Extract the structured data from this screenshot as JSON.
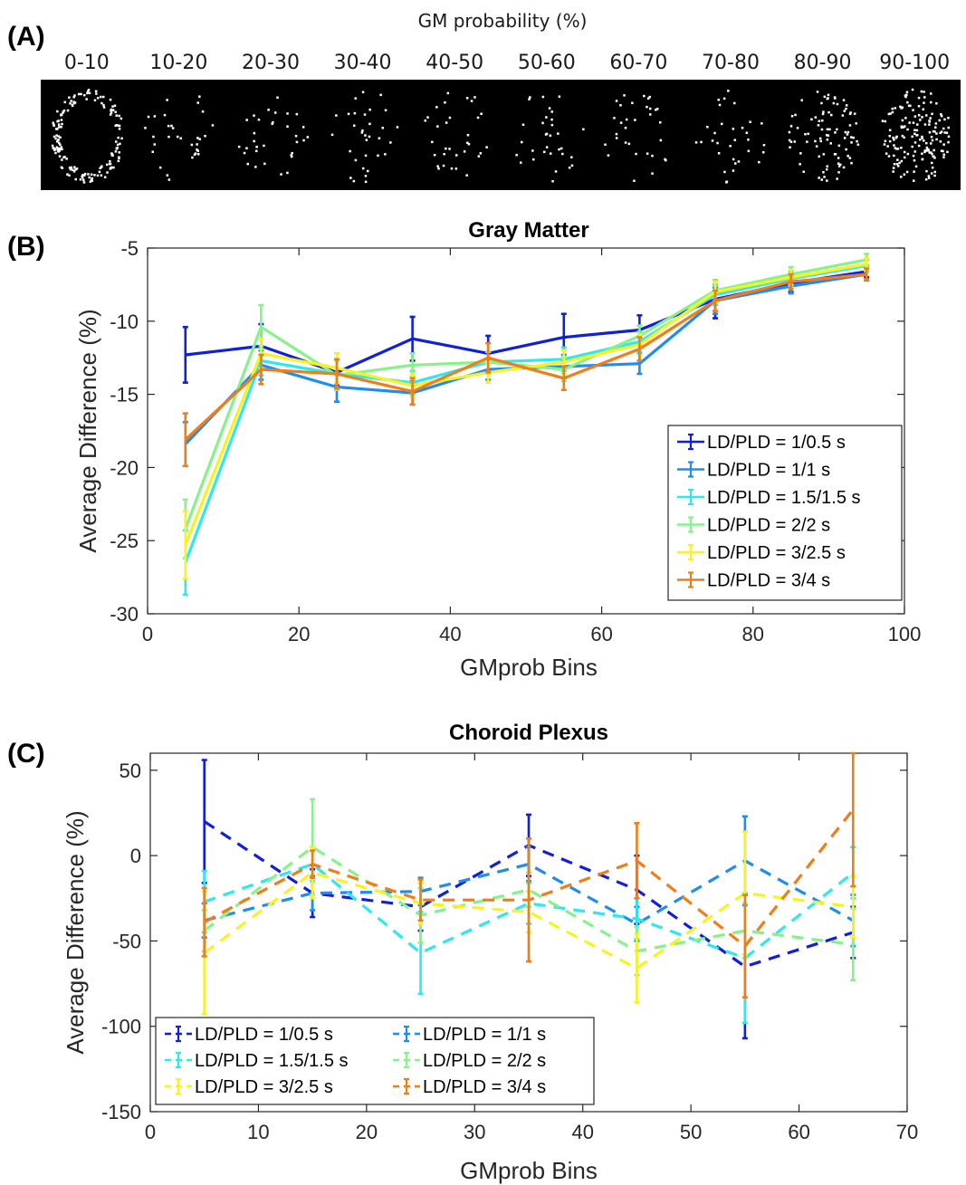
{
  "panel_a": {
    "label": "(A)",
    "title": "GM probability (%)",
    "bins": [
      "0-10",
      "10-20",
      "20-30",
      "30-40",
      "40-50",
      "50-60",
      "60-70",
      "70-80",
      "80-90",
      "90-100"
    ]
  },
  "colors": {
    "s1": "#0f1fdc",
    "s2": "#1e8cf0",
    "s3": "#2ee8f0",
    "s4": "#86f28a",
    "s5": "#f8f21e",
    "s6": "#f07d16"
  },
  "chart_data": [
    {
      "label": "(B)",
      "type": "line",
      "title": "Gray Matter",
      "xlabel": "GMprob Bins",
      "ylabel": "Average Difference (%)",
      "xlim": [
        0,
        100
      ],
      "ylim": [
        -30,
        -5
      ],
      "xticks": [
        0,
        20,
        40,
        60,
        80,
        100
      ],
      "yticks": [
        -30,
        -25,
        -20,
        -15,
        -10,
        -5
      ],
      "legend_position": "lower-right",
      "line_style": "solid",
      "x": [
        5,
        15,
        25,
        35,
        45,
        55,
        65,
        75,
        85,
        95
      ],
      "series": [
        {
          "name": "LD/PLD = 1/0.5 s",
          "values": [
            -12.3,
            -11.7,
            -13.5,
            -11.2,
            -12.2,
            -11.1,
            -10.6,
            -8.5,
            -7.4,
            -6.6
          ],
          "err": [
            1.9,
            1.5,
            0.9,
            1.5,
            1.2,
            1.6,
            1.0,
            1.3,
            0.6,
            0.4
          ]
        },
        {
          "name": "LD/PLD = 1/1 s",
          "values": [
            -18.4,
            -13.0,
            -14.5,
            -14.9,
            -13.3,
            -13.1,
            -12.9,
            -8.6,
            -7.6,
            -6.8
          ],
          "err": [
            1.5,
            1.0,
            1.0,
            0.8,
            0.7,
            0.8,
            0.7,
            0.9,
            0.5,
            0.4
          ]
        },
        {
          "name": "LD/PLD = 1.5/1.5 s",
          "values": [
            -26.5,
            -12.7,
            -13.6,
            -14.2,
            -12.8,
            -12.6,
            -11.4,
            -8.2,
            -7.1,
            -6.2
          ],
          "err": [
            2.2,
            1.0,
            1.0,
            0.8,
            0.7,
            0.8,
            0.7,
            0.7,
            0.5,
            0.4
          ]
        },
        {
          "name": "LD/PLD = 2/2 s",
          "values": [
            -24.2,
            -10.4,
            -13.7,
            -13.0,
            -12.8,
            -13.3,
            -11.0,
            -7.9,
            -6.8,
            -5.8
          ],
          "err": [
            2.0,
            1.5,
            1.0,
            0.8,
            0.7,
            0.8,
            0.7,
            0.7,
            0.5,
            0.4
          ]
        },
        {
          "name": "LD/PLD = 3/2.5 s",
          "values": [
            -25.3,
            -12.2,
            -13.2,
            -14.4,
            -13.5,
            -12.8,
            -11.6,
            -8.0,
            -7.0,
            -6.1
          ],
          "err": [
            2.3,
            1.0,
            1.0,
            0.8,
            0.7,
            0.8,
            0.7,
            0.7,
            0.5,
            0.4
          ]
        },
        {
          "name": "LD/PLD = 3/4 s",
          "values": [
            -18.1,
            -13.3,
            -13.6,
            -14.8,
            -12.5,
            -13.9,
            -11.9,
            -8.6,
            -7.3,
            -6.8
          ],
          "err": [
            1.8,
            1.0,
            1.0,
            0.9,
            1.0,
            0.8,
            0.8,
            0.7,
            0.5,
            0.4
          ]
        }
      ]
    },
    {
      "label": "(C)",
      "type": "line",
      "title": "Choroid Plexus",
      "xlabel": "GMprob Bins",
      "ylabel": "Average Difference (%)",
      "xlim": [
        0,
        70
      ],
      "ylim": [
        -150,
        60
      ],
      "xticks": [
        0,
        10,
        20,
        30,
        40,
        50,
        60,
        70
      ],
      "yticks": [
        -150,
        -100,
        -50,
        0,
        50
      ],
      "legend_position": "lower-left",
      "line_style": "dashed",
      "x": [
        5,
        15,
        25,
        35,
        45,
        55,
        65
      ],
      "series": [
        {
          "name": "LD/PLD = 1/0.5 s",
          "values": [
            20,
            -22,
            -30,
            6,
            -20,
            -65,
            -45
          ],
          "err": [
            36,
            14,
            14,
            18,
            20,
            42,
            15
          ]
        },
        {
          "name": "LD/PLD = 1/1 s",
          "values": [
            -38,
            -22,
            -21,
            -5,
            -40,
            -3,
            -38
          ],
          "err": [
            10,
            10,
            8,
            10,
            10,
            26,
            15
          ]
        },
        {
          "name": "LD/PLD = 1.5/1.5 s",
          "values": [
            -27,
            -5,
            -57,
            -28,
            -37,
            -60,
            -10
          ],
          "err": [
            18,
            10,
            24,
            12,
            12,
            38,
            15
          ]
        },
        {
          "name": "LD/PLD = 2/2 s",
          "values": [
            -44,
            5,
            -35,
            -20,
            -56,
            -44,
            -52
          ],
          "err": [
            12,
            28,
            16,
            10,
            14,
            16,
            21
          ]
        },
        {
          "name": "LD/PLD = 3/2.5 s",
          "values": [
            -57,
            -10,
            -28,
            -33,
            -66,
            -22,
            -30
          ],
          "err": [
            36,
            15,
            12,
            12,
            20,
            36,
            18
          ]
        },
        {
          "name": "LD/PLD = 3/4 s",
          "values": [
            -39,
            -5,
            -26,
            -26,
            -3,
            -53,
            27
          ],
          "err": [
            20,
            8,
            12,
            36,
            22,
            30,
            45
          ]
        }
      ]
    }
  ]
}
